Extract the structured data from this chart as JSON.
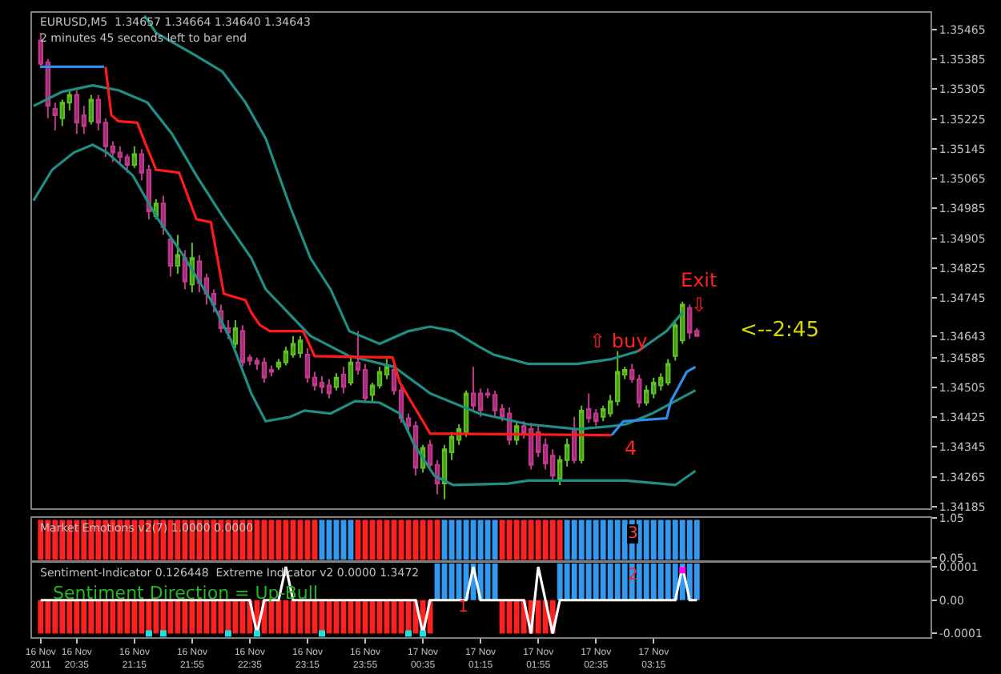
{
  "chart_data": [
    {
      "type": "candlestick",
      "title": "EURUSD,M5  1.34657 1.34664 1.34640 1.34643",
      "subtitle": "2 minutes 45 seconds left to bar end",
      "x": [
        "2011-11-16T20:10",
        "2011-11-16T20:15",
        "2011-11-16T20:20",
        "2011-11-16T20:25",
        "2011-11-16T20:30",
        "2011-11-16T20:35",
        "2011-11-16T20:40",
        "2011-11-16T20:45",
        "2011-11-16T20:50",
        "2011-11-16T20:55",
        "2011-11-16T21:00",
        "2011-11-16T21:05",
        "2011-11-16T21:10",
        "2011-11-16T21:15",
        "2011-11-16T21:20",
        "2011-11-16T21:25",
        "2011-11-16T21:30",
        "2011-11-16T21:35",
        "2011-11-16T21:40",
        "2011-11-16T21:45",
        "2011-11-16T21:50",
        "2011-11-16T21:55",
        "2011-11-16T22:00",
        "2011-11-16T22:05",
        "2011-11-16T22:10",
        "2011-11-16T22:15",
        "2011-11-16T22:20",
        "2011-11-16T22:25",
        "2011-11-16T22:30",
        "2011-11-16T22:35",
        "2011-11-16T22:40",
        "2011-11-16T22:45",
        "2011-11-16T22:50",
        "2011-11-16T22:55",
        "2011-11-16T23:00",
        "2011-11-16T23:05",
        "2011-11-16T23:10",
        "2011-11-16T23:15",
        "2011-11-16T23:20",
        "2011-11-16T23:25",
        "2011-11-16T23:30",
        "2011-11-16T23:35",
        "2011-11-16T23:40",
        "2011-11-16T23:45",
        "2011-11-16T23:50",
        "2011-11-16T23:55",
        "2011-11-17T00:00",
        "2011-11-17T00:05",
        "2011-11-17T00:10",
        "2011-11-17T00:15",
        "2011-11-17T00:20",
        "2011-11-17T00:25",
        "2011-11-17T00:30",
        "2011-11-17T00:35",
        "2011-11-17T00:40",
        "2011-11-17T00:45",
        "2011-11-17T00:50",
        "2011-11-17T00:55",
        "2011-11-17T01:00",
        "2011-11-17T01:05",
        "2011-11-17T01:10",
        "2011-11-17T01:15",
        "2011-11-17T01:20",
        "2011-11-17T01:25",
        "2011-11-17T01:30",
        "2011-11-17T01:35",
        "2011-11-17T01:40",
        "2011-11-17T01:45",
        "2011-11-17T01:50",
        "2011-11-17T01:55",
        "2011-11-17T02:00",
        "2011-11-17T02:05",
        "2011-11-17T02:10",
        "2011-11-17T02:15",
        "2011-11-17T02:20",
        "2011-11-17T02:25",
        "2011-11-17T02:30",
        "2011-11-17T02:35",
        "2011-11-17T02:40",
        "2011-11-17T02:45",
        "2011-11-17T02:50",
        "2011-11-17T02:55",
        "2011-11-17T03:00",
        "2011-11-17T03:05",
        "2011-11-17T03:10",
        "2011-11-17T03:15",
        "2011-11-17T03:20",
        "2011-11-17T03:25",
        "2011-11-17T03:30",
        "2011-11-17T03:35",
        "2011-11-17T03:40",
        "2011-11-17T03:45"
      ],
      "ohlc": [
        [
          1.35436,
          1.35456,
          1.35361,
          1.35373
        ],
        [
          1.35377,
          1.35386,
          1.35227,
          1.3526
        ],
        [
          1.35252,
          1.35269,
          1.35194,
          1.35235
        ],
        [
          1.35227,
          1.35277,
          1.35206,
          1.35269
        ],
        [
          1.35269,
          1.35302,
          1.35248,
          1.3529
        ],
        [
          1.3529,
          1.35302,
          1.35185,
          1.35215
        ],
        [
          1.35235,
          1.3526,
          1.35185,
          1.35206
        ],
        [
          1.35219,
          1.3529,
          1.3521,
          1.35277
        ],
        [
          1.35277,
          1.3529,
          1.35194,
          1.35215
        ],
        [
          1.35215,
          1.35227,
          1.35123,
          1.35152
        ],
        [
          1.35152,
          1.35165,
          1.3511,
          1.35135
        ],
        [
          1.35135,
          1.35152,
          1.35102,
          1.35123
        ],
        [
          1.35123,
          1.35131,
          1.35081,
          1.35102
        ],
        [
          1.35102,
          1.35152,
          1.35094,
          1.35131
        ],
        [
          1.35131,
          1.35144,
          1.3506,
          1.35081
        ],
        [
          1.35089,
          1.35102,
          1.34956,
          1.34977
        ],
        [
          1.34964,
          1.3501,
          1.34956,
          1.34998
        ],
        [
          1.34998,
          1.35019,
          1.34914,
          1.34935
        ],
        [
          1.34902,
          1.34914,
          1.34802,
          1.34831
        ],
        [
          1.34831,
          1.34914,
          1.3481,
          1.3486
        ],
        [
          1.34852,
          1.34873,
          1.34768,
          1.34789
        ],
        [
          1.34781,
          1.34893,
          1.3476,
          1.34852
        ],
        [
          1.34843,
          1.3486,
          1.3476,
          1.34785
        ],
        [
          1.34798,
          1.3481,
          1.34727,
          1.34756
        ],
        [
          1.34756,
          1.34768,
          1.34706,
          1.34727
        ],
        [
          1.3471,
          1.34727,
          1.34652,
          1.34664
        ],
        [
          1.34664,
          1.34685,
          1.34635,
          1.34652
        ],
        [
          1.34622,
          1.34685,
          1.3461,
          1.34664
        ],
        [
          1.34656,
          1.34672,
          1.3456,
          1.34572
        ],
        [
          1.34585,
          1.34593,
          1.34564,
          1.34577
        ],
        [
          1.34577,
          1.34585,
          1.34552,
          1.34568
        ],
        [
          1.34572,
          1.34585,
          1.34518,
          1.34531
        ],
        [
          1.34552,
          1.34564,
          1.34535,
          1.34547
        ],
        [
          1.3456,
          1.34581,
          1.34552,
          1.34572
        ],
        [
          1.34572,
          1.34614,
          1.34564,
          1.34602
        ],
        [
          1.34593,
          1.34643,
          1.34585,
          1.34622
        ],
        [
          1.34597,
          1.34643,
          1.34585,
          1.34631
        ],
        [
          1.34593,
          1.3461,
          1.34518,
          1.34531
        ],
        [
          1.34531,
          1.34547,
          1.34497,
          1.3451
        ],
        [
          1.34518,
          1.34535,
          1.34489,
          1.34506
        ],
        [
          1.3451,
          1.34527,
          1.34476,
          1.34489
        ],
        [
          1.34506,
          1.34543,
          1.34497,
          1.34531
        ],
        [
          1.34539,
          1.3456,
          1.34489,
          1.34506
        ],
        [
          1.34518,
          1.34585,
          1.3451,
          1.34572
        ],
        [
          1.34572,
          1.34656,
          1.34539,
          1.34552
        ],
        [
          1.34552,
          1.34568,
          1.34468,
          1.34476
        ],
        [
          1.34485,
          1.34518,
          1.34468,
          1.3451
        ],
        [
          1.3451,
          1.3456,
          1.34502,
          1.34547
        ],
        [
          1.34539,
          1.34581,
          1.34527,
          1.3456
        ],
        [
          1.34552,
          1.34568,
          1.34485,
          1.34497
        ],
        [
          1.34497,
          1.3451,
          1.3441,
          1.34422
        ],
        [
          1.34422,
          1.34435,
          1.34385,
          1.34401
        ],
        [
          1.34401,
          1.34414,
          1.34268,
          1.34289
        ],
        [
          1.34289,
          1.34351,
          1.34276,
          1.34343
        ],
        [
          1.34351,
          1.34364,
          1.34281,
          1.34297
        ],
        [
          1.34297,
          1.3431,
          1.34218,
          1.34247
        ],
        [
          1.34247,
          1.34351,
          1.34205,
          1.34339
        ],
        [
          1.34331,
          1.34385,
          1.3431,
          1.34372
        ],
        [
          1.34364,
          1.34406,
          1.34351,
          1.34393
        ],
        [
          1.34385,
          1.34497,
          1.34372,
          1.34489
        ],
        [
          1.34489,
          1.3456,
          1.34443,
          1.34456
        ],
        [
          1.34489,
          1.34502,
          1.34426,
          1.34443
        ],
        [
          1.34489,
          1.34502,
          1.34476,
          1.34485
        ],
        [
          1.34485,
          1.34497,
          1.34426,
          1.34443
        ],
        [
          1.34447,
          1.3446,
          1.34414,
          1.34426
        ],
        [
          1.34435,
          1.34451,
          1.34351,
          1.34364
        ],
        [
          1.34364,
          1.34414,
          1.34351,
          1.34401
        ],
        [
          1.34401,
          1.34414,
          1.34368,
          1.34381
        ],
        [
          1.34393,
          1.3441,
          1.34285,
          1.34297
        ],
        [
          1.34385,
          1.34401,
          1.34318,
          1.34331
        ],
        [
          1.34351,
          1.34368,
          1.34285,
          1.34301
        ],
        [
          1.34322,
          1.34339,
          1.34255,
          1.34268
        ],
        [
          1.3426,
          1.34322,
          1.34243,
          1.3431
        ],
        [
          1.3431,
          1.34368,
          1.34293,
          1.34351
        ],
        [
          1.34393,
          1.34426,
          1.34301,
          1.3431
        ],
        [
          1.3431,
          1.34456,
          1.34301,
          1.34443
        ],
        [
          1.34447,
          1.34489,
          1.3441,
          1.34422
        ],
        [
          1.34435,
          1.34447,
          1.34401,
          1.34414
        ],
        [
          1.34426,
          1.34456,
          1.34414,
          1.34447
        ],
        [
          1.34435,
          1.34485,
          1.34426,
          1.34468
        ],
        [
          1.34468,
          1.34602,
          1.34456,
          1.34547
        ],
        [
          1.34539,
          1.3456,
          1.34527,
          1.34552
        ],
        [
          1.34552,
          1.34568,
          1.34518,
          1.34527
        ],
        [
          1.34527,
          1.34539,
          1.34451,
          1.34464
        ],
        [
          1.34464,
          1.3451,
          1.34456,
          1.34497
        ],
        [
          1.34489,
          1.34531,
          1.34476,
          1.34518
        ],
        [
          1.3451,
          1.34543,
          1.34497,
          1.34531
        ],
        [
          1.34518,
          1.34581,
          1.3451,
          1.34568
        ],
        [
          1.34589,
          1.34685,
          1.34577,
          1.34672
        ],
        [
          1.34631,
          1.34735,
          1.34622,
          1.34727
        ],
        [
          1.34718,
          1.34727,
          1.34635,
          1.34652
        ],
        [
          1.34657,
          1.34664,
          1.3464,
          1.34643
        ]
      ],
      "series": [
        {
          "type": "line",
          "color": "#1f8f86",
          "x": [
            "2011-11-16T21:22",
            "2011-11-16T21:30",
            "2011-11-16T21:58",
            "2011-11-16T22:16",
            "2011-11-16T22:32",
            "2011-11-16T22:46",
            "2011-11-16T23:03",
            "2011-11-16T23:17",
            "2011-11-16T23:31",
            "2011-11-16T23:44",
            "2011-11-17T00:05",
            "2011-11-17T00:25",
            "2011-11-17T00:40",
            "2011-11-17T00:56",
            "2011-11-17T01:14",
            "2011-11-17T01:24",
            "2011-11-17T01:48",
            "2011-11-17T02:22",
            "2011-11-17T02:46",
            "2011-11-17T03:04",
            "2011-11-17T03:24",
            "2011-11-17T03:35"
          ],
          "values": [
            1.35502,
            1.35456,
            1.35394,
            1.35352,
            1.35269,
            1.35173,
            1.34989,
            1.34852,
            1.34768,
            1.34656,
            1.34622,
            1.34656,
            1.34668,
            1.34656,
            1.34614,
            1.34593,
            1.34568,
            1.34568,
            1.34581,
            1.34602,
            1.34656,
            1.34706
          ]
        },
        {
          "type": "line",
          "color": "#1f8f86",
          "x": [
            "2011-11-16T20:05",
            "2011-11-16T20:25",
            "2011-11-16T20:46",
            "2011-11-16T21:04",
            "2011-11-16T21:24",
            "2011-11-16T21:41",
            "2011-11-16T21:58",
            "2011-11-16T22:16",
            "2011-11-16T22:36",
            "2011-11-16T22:46",
            "2011-11-16T23:17",
            "2011-11-16T23:44",
            "2011-11-17T00:15",
            "2011-11-17T00:40",
            "2011-11-17T01:14",
            "2011-11-17T01:48",
            "2011-11-17T02:22",
            "2011-11-17T02:46",
            "2011-11-17T02:56",
            "2011-11-17T03:14",
            "2011-11-17T03:30",
            "2011-11-17T03:44"
          ],
          "values": [
            1.3526,
            1.35298,
            1.35315,
            1.35302,
            1.35269,
            1.35185,
            1.35073,
            1.34964,
            1.34852,
            1.34768,
            1.34643,
            1.34589,
            1.3456,
            1.34489,
            1.34435,
            1.34406,
            1.34393,
            1.34401,
            1.34406,
            1.34435,
            1.34468,
            1.34497
          ]
        },
        {
          "type": "line",
          "color": "#1f8f86",
          "x": [
            "2011-11-16T20:05",
            "2011-11-16T20:18",
            "2011-11-16T20:33",
            "2011-11-16T20:46",
            "2011-11-16T20:56",
            "2011-11-16T21:14",
            "2011-11-16T21:30",
            "2011-11-16T21:48",
            "2011-11-16T22:08",
            "2011-11-16T22:22",
            "2011-11-16T22:36",
            "2011-11-16T22:46",
            "2011-11-16T23:03",
            "2011-11-16T23:13",
            "2011-11-16T23:31",
            "2011-11-16T23:48",
            "2011-11-17T00:05",
            "2011-11-17T00:19",
            "2011-11-17T00:29",
            "2011-11-17T00:43",
            "2011-11-17T00:56",
            "2011-11-17T01:34",
            "2011-11-17T01:48",
            "2011-11-17T02:22",
            "2011-11-17T02:56",
            "2011-11-17T03:30",
            "2011-11-17T03:44"
          ],
          "values": [
            1.35006,
            1.35089,
            1.35135,
            1.35156,
            1.35135,
            1.35073,
            1.34964,
            1.34864,
            1.34739,
            1.34631,
            1.34489,
            1.34414,
            1.34426,
            1.34443,
            1.34435,
            1.34468,
            1.34464,
            1.34435,
            1.34351,
            1.34268,
            1.34243,
            1.34247,
            1.34255,
            1.34255,
            1.34255,
            1.34243,
            1.34281
          ]
        },
        {
          "type": "line",
          "color": "#2f8fe8",
          "x": [
            "2011-11-16T20:10",
            "2011-11-16T20:54"
          ],
          "values": [
            1.35365,
            1.35365
          ]
        },
        {
          "type": "line",
          "color": "#ff1a1a",
          "x": [
            "2011-11-16T20:55",
            "2011-11-16T20:59",
            "2011-11-16T21:04",
            "2011-11-16T21:17",
            "2011-11-16T21:22",
            "2011-11-16T21:30",
            "2011-11-16T21:46",
            "2011-11-16T21:58",
            "2011-11-16T22:08",
            "2011-11-16T22:17",
            "2011-11-16T22:32",
            "2011-11-16T22:36",
            "2011-11-16T22:42",
            "2011-11-16T22:49",
            "2011-11-16T23:12",
            "2011-11-16T23:20",
            "2011-11-17T00:14",
            "2011-11-17T00:19",
            "2011-11-17T00:35",
            "2011-11-17T00:40",
            "2011-11-17T02:46"
          ],
          "values": [
            1.35365,
            1.35235,
            1.35219,
            1.35215,
            1.35165,
            1.35089,
            1.35081,
            1.34956,
            1.34948,
            1.34756,
            1.34739,
            1.34706,
            1.34672,
            1.34656,
            1.34656,
            1.34589,
            1.34585,
            1.34518,
            1.34414,
            1.34381,
            1.34377
          ]
        },
        {
          "type": "line",
          "color": "#2f8fe8",
          "x": [
            "2011-11-17T02:46",
            "2011-11-17T02:54",
            "2011-11-17T03:24",
            "2011-11-17T03:27",
            "2011-11-17T03:38",
            "2011-11-17T03:44"
          ],
          "values": [
            1.34377,
            1.34414,
            1.34422,
            1.34468,
            1.34547,
            1.3456
          ]
        }
      ],
      "annotations": [
        "⇧ buy",
        "Exit\n⇩",
        "4",
        "<--2:45"
      ],
      "xlim": [
        "2011-11-16T20:04",
        "2011-11-17T06:27"
      ],
      "ylim": [
        1.3418,
        1.3551
      ],
      "yticks": [
        1.35465,
        1.35385,
        1.35305,
        1.35225,
        1.35145,
        1.35065,
        1.34985,
        1.34905,
        1.34825,
        1.34745,
        1.34643,
        1.34585,
        1.34505,
        1.34425,
        1.34345,
        1.34265,
        1.34185
      ],
      "tick_labels": "y",
      "grid": false
    },
    {
      "type": "bar",
      "x": [
        "2011-11-16T20:10",
        "2011-11-16T20:15",
        "2011-11-16T20:20",
        "2011-11-16T20:25",
        "2011-11-16T20:30",
        "2011-11-16T20:35",
        "2011-11-16T20:40",
        "2011-11-16T20:45",
        "2011-11-16T20:50",
        "2011-11-16T20:55",
        "2011-11-16T21:00",
        "2011-11-16T21:05",
        "2011-11-16T21:10",
        "2011-11-16T21:15",
        "2011-11-16T21:20",
        "2011-11-16T21:25",
        "2011-11-16T21:30",
        "2011-11-16T21:35",
        "2011-11-16T21:40",
        "2011-11-16T21:45",
        "2011-11-16T21:50",
        "2011-11-16T21:55",
        "2011-11-16T22:00",
        "2011-11-16T22:05",
        "2011-11-16T22:10",
        "2011-11-16T22:15",
        "2011-11-16T22:20",
        "2011-11-16T22:25",
        "2011-11-16T22:30",
        "2011-11-16T22:35",
        "2011-11-16T22:40",
        "2011-11-16T22:45",
        "2011-11-16T22:50",
        "2011-11-16T22:55",
        "2011-11-16T23:00",
        "2011-11-16T23:05",
        "2011-11-16T23:10",
        "2011-11-16T23:15",
        "2011-11-16T23:20",
        "2011-11-16T23:25",
        "2011-11-16T23:30",
        "2011-11-16T23:35",
        "2011-11-16T23:40",
        "2011-11-16T23:45",
        "2011-11-16T23:50",
        "2011-11-16T23:55",
        "2011-11-17T00:00",
        "2011-11-17T00:05",
        "2011-11-17T00:10",
        "2011-11-17T00:15",
        "2011-11-17T00:20",
        "2011-11-17T00:25",
        "2011-11-17T00:30",
        "2011-11-17T00:35",
        "2011-11-17T00:40",
        "2011-11-17T00:45",
        "2011-11-17T00:50",
        "2011-11-17T00:55",
        "2011-11-17T01:00",
        "2011-11-17T01:05",
        "2011-11-17T01:10",
        "2011-11-17T01:15",
        "2011-11-17T01:20",
        "2011-11-17T01:25",
        "2011-11-17T01:30",
        "2011-11-17T01:35",
        "2011-11-17T01:40",
        "2011-11-17T01:45",
        "2011-11-17T01:50",
        "2011-11-17T01:55",
        "2011-11-17T02:00",
        "2011-11-17T02:05",
        "2011-11-17T02:10",
        "2011-11-17T02:15",
        "2011-11-17T02:20",
        "2011-11-17T02:25",
        "2011-11-17T02:30",
        "2011-11-17T02:35",
        "2011-11-17T02:40",
        "2011-11-17T02:45",
        "2011-11-17T02:50",
        "2011-11-17T02:55",
        "2011-11-17T03:00",
        "2011-11-17T03:05",
        "2011-11-17T03:10",
        "2011-11-17T03:15",
        "2011-11-17T03:20",
        "2011-11-17T03:25",
        "2011-11-17T03:30",
        "2011-11-17T03:35",
        "2011-11-17T03:40",
        "2011-11-17T03:45"
      ],
      "values": [
        1,
        1,
        1,
        1,
        1,
        1,
        1,
        1,
        1,
        1,
        1,
        1,
        1,
        1,
        1,
        1,
        1,
        1,
        1,
        1,
        1,
        1,
        1,
        1,
        1,
        1,
        1,
        1,
        1,
        1,
        1,
        1,
        1,
        1,
        1,
        1,
        1,
        1,
        1,
        1,
        1,
        1,
        1,
        1,
        1,
        1,
        1,
        1,
        1,
        1,
        1,
        1,
        1,
        1,
        1,
        1,
        1,
        1,
        1,
        1,
        1,
        1,
        1,
        1,
        1,
        1,
        1,
        1,
        1,
        1,
        1,
        1,
        1,
        1,
        1,
        1,
        1,
        1,
        1,
        1,
        1,
        1,
        1,
        1,
        1,
        1,
        1,
        1,
        1,
        1,
        1,
        1
      ],
      "colors": [
        "#ff2020",
        "#ff2020",
        "#ff2020",
        "#ff2020",
        "#ff2020",
        "#ff2020",
        "#ff2020",
        "#ff2020",
        "#ff2020",
        "#ff2020",
        "#ff2020",
        "#ff2020",
        "#ff2020",
        "#ff2020",
        "#ff2020",
        "#ff2020",
        "#ff2020",
        "#ff2020",
        "#ff2020",
        "#ff2020",
        "#ff2020",
        "#ff2020",
        "#ff2020",
        "#ff2020",
        "#ff2020",
        "#ff2020",
        "#ff2020",
        "#ff2020",
        "#ff2020",
        "#ff2020",
        "#ff2020",
        "#ff2020",
        "#ff2020",
        "#ff2020",
        "#ff2020",
        "#ff2020",
        "#ff2020",
        "#ff2020",
        "#ff2020",
        "#3399ee",
        "#3399ee",
        "#3399ee",
        "#3399ee",
        "#3399ee",
        "#ff2020",
        "#ff2020",
        "#ff2020",
        "#ff2020",
        "#ff2020",
        "#ff2020",
        "#ff2020",
        "#ff2020",
        "#ff2020",
        "#ff2020",
        "#ff2020",
        "#ff2020",
        "#3399ee",
        "#3399ee",
        "#3399ee",
        "#3399ee",
        "#3399ee",
        "#3399ee",
        "#3399ee",
        "#3399ee",
        "#ff2020",
        "#ff2020",
        "#ff2020",
        "#ff2020",
        "#ff2020",
        "#ff2020",
        "#ff2020",
        "#ff2020",
        "#ff2020",
        "#3399ee",
        "#3399ee",
        "#3399ee",
        "#3399ee",
        "#3399ee",
        "#3399ee",
        "#3399ee",
        "#3399ee",
        "#3399ee",
        "#3399ee",
        "#3399ee",
        "#3399ee",
        "#3399ee",
        "#3399ee",
        "#3399ee",
        "#3399ee",
        "#3399ee",
        "#3399ee",
        "#3399ee"
      ],
      "annotations": [
        "Market Emotions v2(7) 1.0000 0.0000",
        "3"
      ],
      "xlim": [
        "2011-11-16T20:04",
        "2011-11-17T06:27"
      ],
      "ylim": [
        0,
        1.05
      ],
      "yticks": [
        1.05,
        0.05
      ],
      "tick_labels": "y",
      "grid": false
    },
    {
      "type": "bar",
      "x": [
        "2011-11-16T20:10",
        "2011-11-16T20:15",
        "2011-11-16T20:20",
        "2011-11-16T20:25",
        "2011-11-16T20:30",
        "2011-11-16T20:35",
        "2011-11-16T20:40",
        "2011-11-16T20:45",
        "2011-11-16T20:50",
        "2011-11-16T20:55",
        "2011-11-16T21:00",
        "2011-11-16T21:05",
        "2011-11-16T21:10",
        "2011-11-16T21:15",
        "2011-11-16T21:20",
        "2011-11-16T21:25",
        "2011-11-16T21:30",
        "2011-11-16T21:35",
        "2011-11-16T21:40",
        "2011-11-16T21:45",
        "2011-11-16T21:50",
        "2011-11-16T21:55",
        "2011-11-16T22:00",
        "2011-11-16T22:05",
        "2011-11-16T22:10",
        "2011-11-16T22:15",
        "2011-11-16T22:20",
        "2011-11-16T22:25",
        "2011-11-16T22:30",
        "2011-11-16T22:35",
        "2011-11-16T22:40",
        "2011-11-16T22:45",
        "2011-11-16T22:50",
        "2011-11-16T22:55",
        "2011-11-16T23:00",
        "2011-11-16T23:05",
        "2011-11-16T23:10",
        "2011-11-16T23:15",
        "2011-11-16T23:20",
        "2011-11-16T23:25",
        "2011-11-16T23:30",
        "2011-11-16T23:35",
        "2011-11-16T23:40",
        "2011-11-16T23:45",
        "2011-11-16T23:50",
        "2011-11-16T23:55",
        "2011-11-17T00:00",
        "2011-11-17T00:05",
        "2011-11-17T00:10",
        "2011-11-17T00:15",
        "2011-11-17T00:20",
        "2011-11-17T00:25",
        "2011-11-17T00:30",
        "2011-11-17T00:35",
        "2011-11-17T00:40",
        "2011-11-17T00:45",
        "2011-11-17T00:50",
        "2011-11-17T00:55",
        "2011-11-17T01:00",
        "2011-11-17T01:05",
        "2011-11-17T01:10",
        "2011-11-17T01:15",
        "2011-11-17T01:20",
        "2011-11-17T01:25",
        "2011-11-17T01:30",
        "2011-11-17T01:35",
        "2011-11-17T01:40",
        "2011-11-17T01:45",
        "2011-11-17T01:50",
        "2011-11-17T01:55",
        "2011-11-17T02:00",
        "2011-11-17T02:05",
        "2011-11-17T02:10",
        "2011-11-17T02:15",
        "2011-11-17T02:20",
        "2011-11-17T02:25",
        "2011-11-17T02:30",
        "2011-11-17T02:35",
        "2011-11-17T02:40",
        "2011-11-17T02:45",
        "2011-11-17T02:50",
        "2011-11-17T02:55",
        "2011-11-17T03:00",
        "2011-11-17T03:05",
        "2011-11-17T03:10",
        "2011-11-17T03:15",
        "2011-11-17T03:20",
        "2011-11-17T03:25",
        "2011-11-17T03:30",
        "2011-11-17T03:35",
        "2011-11-17T03:40",
        "2011-11-17T03:45"
      ],
      "values": [
        -0.0001,
        -0.0001,
        -0.0001,
        -0.0001,
        -0.0001,
        -0.0001,
        -0.0001,
        -0.0001,
        -0.0001,
        -0.0001,
        -0.0001,
        -0.0001,
        -0.0001,
        -0.0001,
        -0.0001,
        -0.0001,
        -0.0001,
        -0.0001,
        -0.0001,
        -0.0001,
        -0.0001,
        -0.0001,
        -0.0001,
        -0.0001,
        -0.0001,
        -0.0001,
        -0.0001,
        -0.0001,
        -0.0001,
        -0.0001,
        -0.0001,
        -0.0001,
        -0.0001,
        -0.0001,
        -0.0001,
        -0.0001,
        -0.0001,
        -0.0001,
        -0.0001,
        -0.0001,
        -0.0001,
        -0.0001,
        -0.0001,
        -0.0001,
        -0.0001,
        -0.0001,
        -0.0001,
        -0.0001,
        -0.0001,
        -0.0001,
        -0.0001,
        -0.0001,
        -0.0001,
        -0.0001,
        -0.0001,
        0.00011,
        0.00011,
        0.00011,
        0.00011,
        0.00011,
        0.00011,
        0.00011,
        0.00011,
        0.00011,
        -0.0001,
        -0.0001,
        -0.0001,
        -0.0001,
        -0.0001,
        -0.0001,
        -0.0001,
        -0.0001,
        0.00011,
        0.00011,
        0.00011,
        0.00011,
        0.00011,
        0.00011,
        0.00011,
        0.00011,
        0.00011,
        0.00011,
        0.00011,
        0.00011,
        0.00011,
        0.00011,
        0.00011,
        0.00011,
        0.00011,
        0.00011,
        0.00011,
        0.00011
      ],
      "colors": [
        "#ff2020",
        "#ff2020",
        "#ff2020",
        "#ff2020",
        "#ff2020",
        "#ff2020",
        "#ff2020",
        "#ff2020",
        "#ff2020",
        "#ff2020",
        "#ff2020",
        "#ff2020",
        "#ff2020",
        "#ff2020",
        "#ff2020",
        "#ff2020",
        "#ff2020",
        "#ff2020",
        "#ff2020",
        "#ff2020",
        "#ff2020",
        "#ff2020",
        "#ff2020",
        "#ff2020",
        "#ff2020",
        "#ff2020",
        "#ff2020",
        "#ff2020",
        "#ff2020",
        "#ff2020",
        "#ff2020",
        "#ff2020",
        "#ff2020",
        "#ff2020",
        "#ff2020",
        "#ff2020",
        "#ff2020",
        "#ff2020",
        "#ff2020",
        "#ff2020",
        "#ff2020",
        "#ff2020",
        "#ff2020",
        "#ff2020",
        "#ff2020",
        "#ff2020",
        "#ff2020",
        "#ff2020",
        "#ff2020",
        "#ff2020",
        "#ff2020",
        "#ff2020",
        "#ff2020",
        "#ff2020",
        "#ff2020",
        "#3399ee",
        "#3399ee",
        "#3399ee",
        "#3399ee",
        "#3399ee",
        "#3399ee",
        "#3399ee",
        "#3399ee",
        "#3399ee",
        "#ff2020",
        "#ff2020",
        "#ff2020",
        "#ff2020",
        "#ff2020",
        "#ff2020",
        "#ff2020",
        "#ff2020",
        "#3399ee",
        "#3399ee",
        "#3399ee",
        "#3399ee",
        "#3399ee",
        "#3399ee",
        "#3399ee",
        "#3399ee",
        "#3399ee",
        "#3399ee",
        "#3399ee",
        "#3399ee",
        "#3399ee",
        "#3399ee",
        "#3399ee",
        "#3399ee",
        "#3399ee",
        "#3399ee",
        "#3399ee",
        "#3399ee"
      ],
      "series": [
        {
          "type": "line",
          "color": "#ffffff",
          "values": [
            0,
            0,
            0,
            0,
            0,
            0,
            0,
            0,
            0,
            0,
            0,
            0,
            0,
            0,
            0,
            0,
            0,
            0,
            0,
            0,
            0,
            0,
            0,
            0,
            0,
            0,
            0,
            0,
            0,
            0,
            -0.0001,
            0,
            0,
            0,
            0.0001,
            0,
            0,
            0,
            0,
            0,
            0,
            0,
            0,
            0,
            0,
            0,
            0,
            0,
            0,
            0,
            0,
            0,
            0,
            -0.0001,
            0,
            0,
            0,
            0,
            0,
            0,
            0.0001,
            0,
            0,
            0,
            0,
            0,
            0,
            0,
            -0.0001,
            0.0001,
            0,
            -0.0001,
            0,
            0,
            0,
            0,
            0,
            0,
            0,
            0,
            0,
            0,
            0,
            0,
            0,
            0,
            0,
            0,
            0,
            0.0001,
            0,
            0
          ]
        },
        {
          "type": "scatter",
          "color": "#22e0e0",
          "x": [
            "2011-11-16T21:25",
            "2011-11-16T21:35",
            "2011-11-16T22:20",
            "2011-11-16T22:40",
            "2011-11-16T23:25",
            "2011-11-17T00:25",
            "2011-11-17T00:35"
          ],
          "values": [
            -0.0001,
            -0.0001,
            -0.0001,
            -0.0001,
            -0.0001,
            -0.0001,
            -0.0001
          ]
        },
        {
          "type": "scatter",
          "color": "#ff00ff",
          "x": [
            "2011-11-17T03:35"
          ],
          "values": [
            9e-05
          ]
        }
      ],
      "annotations": [
        "Sentiment-Indicator 0.126448  Extreme Indicator v2 0.0000 1.3472",
        "Sentiment Direction = Up-Bull",
        "1",
        "2"
      ],
      "xlim": [
        "2011-11-16T20:04",
        "2011-11-17T06:27"
      ],
      "ylim": [
        -0.000111,
        0.000111
      ],
      "yticks": [
        0.0001,
        {
          "value": 0,
          "label": "0.00"
        },
        -0.0001
      ],
      "xticks": [
        {
          "value": "2011-11-16T20:10",
          "label": "16 Nov 2011"
        },
        {
          "value": "2011-11-16T20:35",
          "label": "16 Nov 20:35"
        },
        {
          "value": "2011-11-16T21:15",
          "label": "16 Nov 21:15"
        },
        {
          "value": "2011-11-16T21:55",
          "label": "16 Nov 21:55"
        },
        {
          "value": "2011-11-16T22:35",
          "label": "16 Nov 22:35"
        },
        {
          "value": "2011-11-16T23:15",
          "label": "16 Nov 23:15"
        },
        {
          "value": "2011-11-16T23:55",
          "label": "16 Nov 23:55"
        },
        {
          "value": "2011-11-17T00:35",
          "label": "17 Nov 00:35"
        },
        {
          "value": "2011-11-17T01:15",
          "label": "17 Nov 01:15"
        },
        {
          "value": "2011-11-17T01:55",
          "label": "17 Nov 01:55"
        },
        {
          "value": "2011-11-17T02:35",
          "label": "17 Nov 02:35"
        },
        {
          "value": "2011-11-17T03:15",
          "label": "17 Nov 03:15"
        }
      ],
      "grid": false
    }
  ]
}
